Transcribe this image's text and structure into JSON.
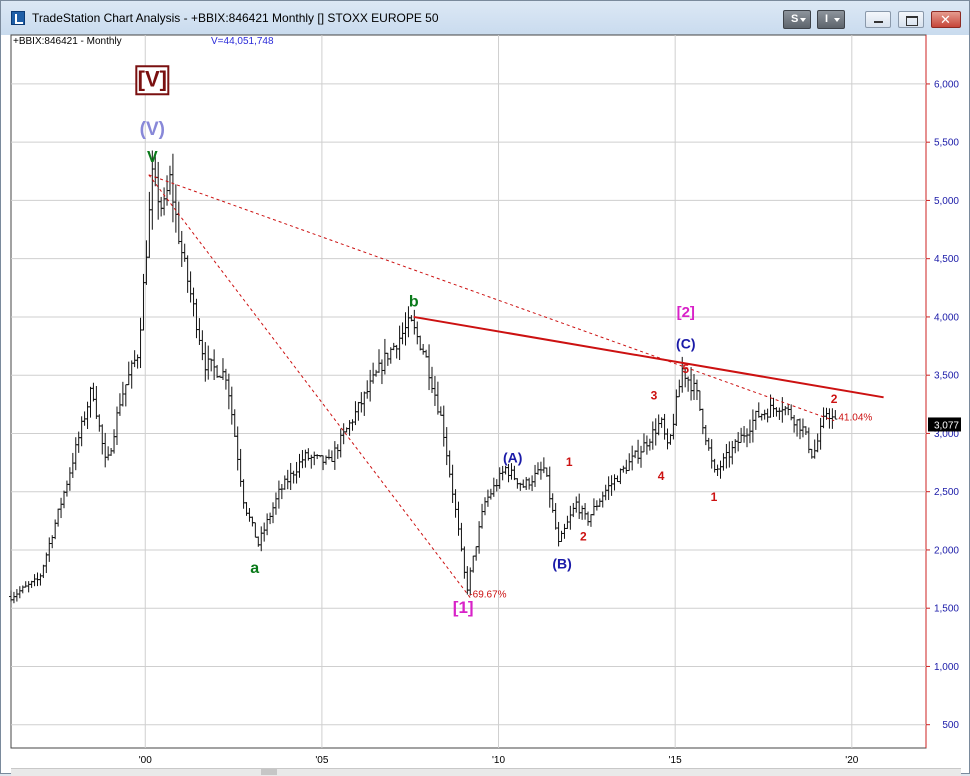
{
  "window": {
    "title": "TradeStation Chart Analysis - +BBIX:846421 Monthly [] STOXX EUROPE 50",
    "toolbar": {
      "s_label": "S",
      "i_label": "I"
    }
  },
  "chart_header": {
    "symbol": "+BBIX:846421 - Monthly",
    "volume": "V=44,051,748"
  },
  "colors": {
    "red": "#cc1111",
    "green": "#0a7a1a",
    "blue": "#1a1aa8",
    "magenta": "#d822c8",
    "lavender": "#8888d8",
    "axis_red": "#cc2222"
  },
  "chart_data": {
    "type": "ohlc-bar",
    "xlabel": "",
    "ylabel": "",
    "x_ticks": [
      "'00",
      "'05",
      "'10",
      "'15",
      "'20"
    ],
    "x_tick_years": [
      2000,
      2005,
      2010,
      2015,
      2020
    ],
    "xlim": [
      1996.2,
      2022.1
    ],
    "y_ticks": [
      "6,000",
      "5,500",
      "5,000",
      "4,500",
      "4,000",
      "3,500",
      "3,000",
      "2,500",
      "2,000",
      "1,500",
      "1,000",
      "500"
    ],
    "y_tick_values": [
      6000,
      5500,
      5000,
      4500,
      4000,
      3500,
      3000,
      2500,
      2000,
      1500,
      1000,
      500
    ],
    "ylim": [
      300,
      6420
    ],
    "last_price": "3,077",
    "last_value": 3077,
    "grid": true,
    "price_path": [
      [
        1996.2,
        1600
      ],
      [
        1997.0,
        1750
      ],
      [
        1997.8,
        2600
      ],
      [
        1998.5,
        3400
      ],
      [
        1998.9,
        2700
      ],
      [
        1999.3,
        3300
      ],
      [
        1999.8,
        3700
      ],
      [
        2000.2,
        5200
      ],
      [
        2000.5,
        4900
      ],
      [
        2000.7,
        5180
      ],
      [
        2001.0,
        4600
      ],
      [
        2001.7,
        3600
      ],
      [
        2002.3,
        3500
      ],
      [
        2002.8,
        2400
      ],
      [
        2003.2,
        2050
      ],
      [
        2003.8,
        2500
      ],
      [
        2004.5,
        2800
      ],
      [
        2005.2,
        2750
      ],
      [
        2006.0,
        3200
      ],
      [
        2006.8,
        3650
      ],
      [
        2007.5,
        3950
      ],
      [
        2007.9,
        3700
      ],
      [
        2008.4,
        3100
      ],
      [
        2008.8,
        2300
      ],
      [
        2009.1,
        1650
      ],
      [
        2009.6,
        2400
      ],
      [
        2010.2,
        2700
      ],
      [
        2010.7,
        2550
      ],
      [
        2011.3,
        2700
      ],
      [
        2011.7,
        2050
      ],
      [
        2012.2,
        2400
      ],
      [
        2012.5,
        2250
      ],
      [
        2013.0,
        2500
      ],
      [
        2014.0,
        2850
      ],
      [
        2014.6,
        3100
      ],
      [
        2014.8,
        2850
      ],
      [
        2015.2,
        3550
      ],
      [
        2015.6,
        3350
      ],
      [
        2016.1,
        2650
      ],
      [
        2016.6,
        2850
      ],
      [
        2017.3,
        3150
      ],
      [
        2018.0,
        3250
      ],
      [
        2018.6,
        3050
      ],
      [
        2018.9,
        2800
      ],
      [
        2019.3,
        3200
      ],
      [
        2019.55,
        3077
      ]
    ],
    "bar_noise": 0.035,
    "red_line": [
      [
        2007.6,
        4000
      ],
      [
        2020.9,
        3310
      ]
    ],
    "dashed_lines": [
      [
        [
          2000.1,
          5220
        ],
        [
          2009.2,
          1590
        ]
      ],
      [
        [
          2000.1,
          5220
        ],
        [
          2019.5,
          3110
        ]
      ]
    ],
    "annotations": [
      {
        "text": "[V]",
        "x": 2000.2,
        "y": 5980,
        "color": "#7a1010",
        "size": 22,
        "boxed": true
      },
      {
        "text": "(V)",
        "x": 2000.2,
        "y": 5560,
        "color": "#8888d8",
        "size": 19
      },
      {
        "text": "V",
        "x": 2000.2,
        "y": 5330,
        "color": "#0a7a1a",
        "size": 16
      },
      {
        "text": "a",
        "x": 2003.1,
        "y": 1800,
        "color": "#0a7a1a",
        "size": 16
      },
      {
        "text": "b",
        "x": 2007.6,
        "y": 4090,
        "color": "#0a7a1a",
        "size": 16
      },
      {
        "text": "[1]",
        "x": 2009.0,
        "y": 1460,
        "color": "#d822c8",
        "size": 17
      },
      {
        "text": "-69.67%",
        "x": 2009.7,
        "y": 1590,
        "color": "#cc1111",
        "size": 10
      },
      {
        "text": "(A)",
        "x": 2010.4,
        "y": 2750,
        "color": "#1a1aa8",
        "size": 14
      },
      {
        "text": "1",
        "x": 2012.0,
        "y": 2720,
        "color": "#cc1111",
        "size": 12,
        "bold": true
      },
      {
        "text": "(B)",
        "x": 2011.8,
        "y": 1840,
        "color": "#1a1aa8",
        "size": 14
      },
      {
        "text": "2",
        "x": 2012.4,
        "y": 2080,
        "color": "#cc1111",
        "size": 12,
        "bold": true
      },
      {
        "text": "3",
        "x": 2014.4,
        "y": 3290,
        "color": "#cc1111",
        "size": 12,
        "bold": true
      },
      {
        "text": "4",
        "x": 2014.6,
        "y": 2600,
        "color": "#cc1111",
        "size": 12,
        "bold": true
      },
      {
        "text": "[2]",
        "x": 2015.3,
        "y": 4000,
        "color": "#d822c8",
        "size": 15
      },
      {
        "text": "(C)",
        "x": 2015.3,
        "y": 3730,
        "color": "#1a1aa8",
        "size": 14
      },
      {
        "text": "5",
        "x": 2015.3,
        "y": 3520,
        "color": "#cc1111",
        "size": 12,
        "bold": true
      },
      {
        "text": "1",
        "x": 2016.1,
        "y": 2420,
        "color": "#cc1111",
        "size": 12,
        "bold": true
      },
      {
        "text": "2",
        "x": 2019.5,
        "y": 3260,
        "color": "#cc1111",
        "size": 12,
        "bold": true
      },
      {
        "text": "41.04%",
        "x": 2020.1,
        "y": 3110,
        "color": "#cc1111",
        "size": 10
      }
    ]
  }
}
